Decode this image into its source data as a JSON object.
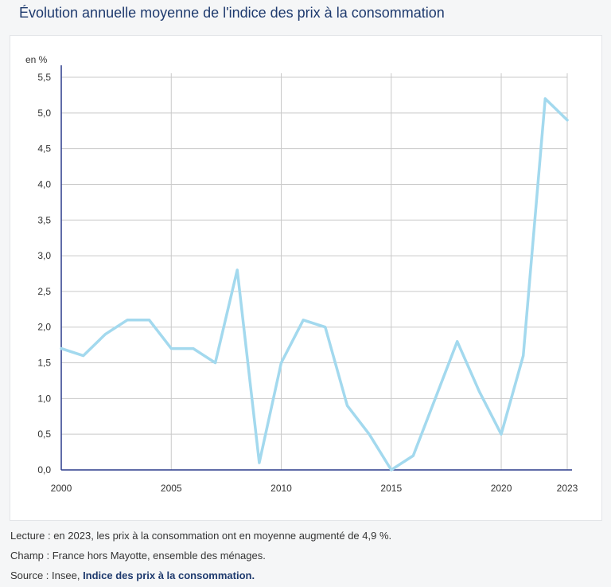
{
  "title": "Évolution annuelle moyenne de l'indice des prix à la consommation",
  "colors": {
    "line": "#a3d9ee",
    "axis": "#2b3c8c",
    "grid": "#c9c9c9",
    "title": "#1e3a6e"
  },
  "chart_data": {
    "type": "line",
    "ylabel": "en %",
    "ylim": [
      0,
      5.5
    ],
    "yticks": [
      "0,0",
      "0,5",
      "1,0",
      "1,5",
      "2,0",
      "2,5",
      "3,0",
      "3,5",
      "4,0",
      "4,5",
      "5,0",
      "5,5"
    ],
    "xlim": [
      2000,
      2023
    ],
    "xticks": [
      "2000",
      "2005",
      "2010",
      "2015",
      "2020",
      "2023"
    ],
    "grid": true,
    "x": [
      2000,
      2001,
      2002,
      2003,
      2004,
      2005,
      2006,
      2007,
      2008,
      2009,
      2010,
      2011,
      2012,
      2013,
      2014,
      2015,
      2016,
      2017,
      2018,
      2019,
      2020,
      2021,
      2022,
      2023
    ],
    "series": [
      {
        "values": [
          1.7,
          1.6,
          1.9,
          2.1,
          2.1,
          1.7,
          1.7,
          1.5,
          2.8,
          0.1,
          1.5,
          2.1,
          2.0,
          0.9,
          0.5,
          0.0,
          0.2,
          1.0,
          1.8,
          1.1,
          0.5,
          1.6,
          5.2,
          4.9
        ]
      }
    ]
  },
  "notes": {
    "lecture": "Lecture : en 2023, les prix à la consommation ont en moyenne augmenté de 4,9 %.",
    "champ": "Champ : France hors Mayotte, ensemble des ménages.",
    "source_prefix": "Source : Insee, ",
    "source_link": "Indice des prix à la consommation."
  }
}
